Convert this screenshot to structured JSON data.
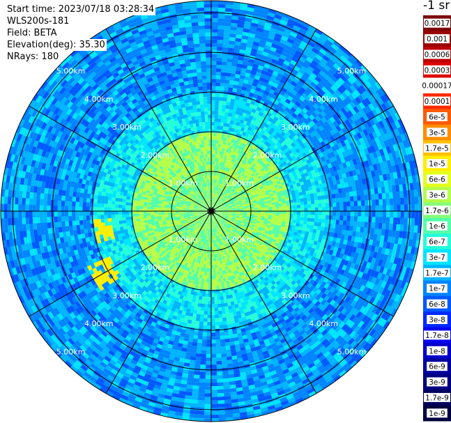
{
  "info": {
    "start_time": "Start time: 2023/07/18 03:28:34",
    "instrument": "WLS200s-181",
    "field": "Field: BETA",
    "elevation": "Elevation(deg): 35.30",
    "nrays": "NRays: 180"
  },
  "colorbar": {
    "unit": "-1 sr",
    "ticks": [
      "0.0017",
      "0.001",
      "0.0006",
      "0.0003",
      "0.00017",
      "0.0001",
      "6e-5",
      "3e-5",
      "1.7e-5",
      "1e-5",
      "6e-6",
      "3e-6",
      "1.7e-6",
      "1e-6",
      "6e-7",
      "3e-7",
      "1.7e-7",
      "1e-7",
      "6e-8",
      "3e-8",
      "1.7e-8",
      "1e-8",
      "6e-9",
      "3e-9",
      "1.7e-9",
      "1e-9"
    ],
    "colors": [
      "#7a0000",
      "#9a0000",
      "#bb0000",
      "#dd0000",
      "#ffffff",
      "#ff2a00",
      "#ff5a00",
      "#ff8c00",
      "#ffbf00",
      "#ffee00",
      "#e4ff1a",
      "#b4ff4a",
      "#84ff7a",
      "#54ffaa",
      "#24ffd9",
      "#00e4ff",
      "#00b4ff",
      "#0084ff",
      "#0058ff",
      "#0028ff",
      "#0000f0",
      "#0000c8",
      "#0000a0",
      "#000080",
      "#000060",
      "#000040"
    ]
  },
  "chart_data": {
    "type": "heatmap",
    "projection": "polar-ppi",
    "range_unit": "km",
    "max_range": 5.3,
    "range_rings": [
      1.0,
      2.0,
      3.0,
      4.0,
      5.0
    ],
    "ring_labels": [
      "1.00km",
      "2.00km",
      "3.00km",
      "4.00km",
      "5.00km"
    ],
    "azimuth_spokes_deg": [
      0,
      30,
      60,
      90,
      120,
      150,
      180,
      210,
      240,
      270,
      300,
      330
    ],
    "nrays": 180,
    "field": "BETA",
    "elevation_deg": 35.3,
    "value_bands": [
      {
        "range_km": [
          0.0,
          1.0
        ],
        "typical": "3e-6"
      },
      {
        "range_km": [
          1.0,
          2.0
        ],
        "typical": "3e-6"
      },
      {
        "range_km": [
          2.0,
          3.0
        ],
        "typical": "1.7e-7"
      },
      {
        "range_km": [
          3.0,
          4.0
        ],
        "typical": "1e-7"
      },
      {
        "range_km": [
          4.0,
          5.3
        ],
        "typical": "1e-7"
      }
    ],
    "features": [
      {
        "azimuth_deg": 260,
        "range_km": [
          2.5,
          3.0
        ],
        "value": "1e-5"
      },
      {
        "azimuth_deg": 240,
        "range_km": [
          2.8,
          3.4
        ],
        "value": "1e-5"
      }
    ]
  }
}
